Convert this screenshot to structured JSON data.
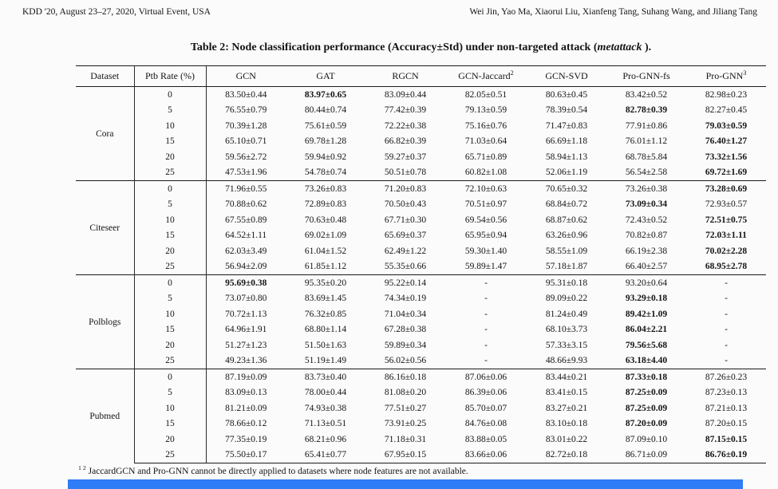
{
  "page_header": {
    "left": "KDD '20, August 23–27, 2020, Virtual Event, USA",
    "right": "Wei Jin, Yao Ma, Xiaorui Liu, Xianfeng Tang, Suhang Wang, and Jiliang Tang"
  },
  "caption": {
    "prefix": "Table 2: Node classification performance (Accuracy±Std) under non-targeted attack (",
    "emph": "metattack",
    "suffix": " )."
  },
  "table": {
    "columns": [
      {
        "label": "Dataset"
      },
      {
        "label": "Ptb Rate (%)"
      },
      {
        "label": "GCN"
      },
      {
        "label": "GAT"
      },
      {
        "label": "RGCN"
      },
      {
        "label": "GCN-Jaccard",
        "sup": "2"
      },
      {
        "label": "GCN-SVD"
      },
      {
        "label": "Pro-GNN-fs"
      },
      {
        "label": "Pro-GNN",
        "sup": "3"
      }
    ],
    "groups": [
      {
        "dataset": "Cora",
        "rows": [
          {
            "ptb": "0",
            "cells": [
              "83.50±0.44",
              "83.97±0.65",
              "83.09±0.44",
              "82.05±0.51",
              "80.63±0.45",
              "83.42±0.52",
              "82.98±0.23"
            ],
            "bold": 1
          },
          {
            "ptb": "5",
            "cells": [
              "76.55±0.79",
              "80.44±0.74",
              "77.42±0.39",
              "79.13±0.59",
              "78.39±0.54",
              "82.78±0.39",
              "82.27±0.45"
            ],
            "bold": 5
          },
          {
            "ptb": "10",
            "cells": [
              "70.39±1.28",
              "75.61±0.59",
              "72.22±0.38",
              "75.16±0.76",
              "71.47±0.83",
              "77.91±0.86",
              "79.03±0.59"
            ],
            "bold": 6
          },
          {
            "ptb": "15",
            "cells": [
              "65.10±0.71",
              "69.78±1.28",
              "66.82±0.39",
              "71.03±0.64",
              "66.69±1.18",
              "76.01±1.12",
              "76.40±1.27"
            ],
            "bold": 6
          },
          {
            "ptb": "20",
            "cells": [
              "59.56±2.72",
              "59.94±0.92",
              "59.27±0.37",
              "65.71±0.89",
              "58.94±1.13",
              "68.78±5.84",
              "73.32±1.56"
            ],
            "bold": 6
          },
          {
            "ptb": "25",
            "cells": [
              "47.53±1.96",
              "54.78±0.74",
              "50.51±0.78",
              "60.82±1.08",
              "52.06±1.19",
              "56.54±2.58",
              "69.72±1.69"
            ],
            "bold": 6
          }
        ]
      },
      {
        "dataset": "Citeseer",
        "rows": [
          {
            "ptb": "0",
            "cells": [
              "71.96±0.55",
              "73.26±0.83",
              "71.20±0.83",
              "72.10±0.63",
              "70.65±0.32",
              "73.26±0.38",
              "73.28±0.69"
            ],
            "bold": 6
          },
          {
            "ptb": "5",
            "cells": [
              "70.88±0.62",
              "72.89±0.83",
              "70.50±0.43",
              "70.51±0.97",
              "68.84±0.72",
              "73.09±0.34",
              "72.93±0.57"
            ],
            "bold": 5
          },
          {
            "ptb": "10",
            "cells": [
              "67.55±0.89",
              "70.63±0.48",
              "67.71±0.30",
              "69.54±0.56",
              "68.87±0.62",
              "72.43±0.52",
              "72.51±0.75"
            ],
            "bold": 6
          },
          {
            "ptb": "15",
            "cells": [
              "64.52±1.11",
              "69.02±1.09",
              "65.69±0.37",
              "65.95±0.94",
              "63.26±0.96",
              "70.82±0.87",
              "72.03±1.11"
            ],
            "bold": 6
          },
          {
            "ptb": "20",
            "cells": [
              "62.03±3.49",
              "61.04±1.52",
              "62.49±1.22",
              "59.30±1.40",
              "58.55±1.09",
              "66.19±2.38",
              "70.02±2.28"
            ],
            "bold": 6
          },
          {
            "ptb": "25",
            "cells": [
              "56.94±2.09",
              "61.85±1.12",
              "55.35±0.66",
              "59.89±1.47",
              "57.18±1.87",
              "66.40±2.57",
              "68.95±2.78"
            ],
            "bold": 6
          }
        ]
      },
      {
        "dataset": "Polblogs",
        "rows": [
          {
            "ptb": "0",
            "cells": [
              "95.69±0.38",
              "95.35±0.20",
              "95.22±0.14",
              "-",
              "95.31±0.18",
              "93.20±0.64",
              "-"
            ],
            "bold": 0
          },
          {
            "ptb": "5",
            "cells": [
              "73.07±0.80",
              "83.69±1.45",
              "74.34±0.19",
              "-",
              "89.09±0.22",
              "93.29±0.18",
              "-"
            ],
            "bold": 5
          },
          {
            "ptb": "10",
            "cells": [
              "70.72±1.13",
              "76.32±0.85",
              "71.04±0.34",
              "-",
              "81.24±0.49",
              "89.42±1.09",
              "-"
            ],
            "bold": 5
          },
          {
            "ptb": "15",
            "cells": [
              "64.96±1.91",
              "68.80±1.14",
              "67.28±0.38",
              "-",
              "68.10±3.73",
              "86.04±2.21",
              "-"
            ],
            "bold": 5
          },
          {
            "ptb": "20",
            "cells": [
              "51.27±1.23",
              "51.50±1.63",
              "59.89±0.34",
              "-",
              "57.33±3.15",
              "79.56±5.68",
              "-"
            ],
            "bold": 5
          },
          {
            "ptb": "25",
            "cells": [
              "49.23±1.36",
              "51.19±1.49",
              "56.02±0.56",
              "-",
              "48.66±9.93",
              "63.18±4.40",
              "-"
            ],
            "bold": 5
          }
        ]
      },
      {
        "dataset": "Pubmed",
        "rows": [
          {
            "ptb": "0",
            "cells": [
              "87.19±0.09",
              "83.73±0.40",
              "86.16±0.18",
              "87.06±0.06",
              "83.44±0.21",
              "87.33±0.18",
              "87.26±0.23"
            ],
            "bold": 5
          },
          {
            "ptb": "5",
            "cells": [
              "83.09±0.13",
              "78.00±0.44",
              "81.08±0.20",
              "86.39±0.06",
              "83.41±0.15",
              "87.25±0.09",
              "87.23±0.13"
            ],
            "bold": 5
          },
          {
            "ptb": "10",
            "cells": [
              "81.21±0.09",
              "74.93±0.38",
              "77.51±0.27",
              "85.70±0.07",
              "83.27±0.21",
              "87.25±0.09",
              "87.21±0.13"
            ],
            "bold": 5
          },
          {
            "ptb": "15",
            "cells": [
              "78.66±0.12",
              "71.13±0.51",
              "73.91±0.25",
              "84.76±0.08",
              "83.10±0.18",
              "87.20±0.09",
              "87.20±0.15"
            ],
            "bold": 5
          },
          {
            "ptb": "20",
            "cells": [
              "77.35±0.19",
              "68.21±0.96",
              "71.18±0.31",
              "83.88±0.05",
              "83.01±0.22",
              "87.09±0.10",
              "87.15±0.15"
            ],
            "bold": 6
          },
          {
            "ptb": "25",
            "cells": [
              "75.50±0.17",
              "65.41±0.77",
              "67.95±0.15",
              "83.66±0.06",
              "82.72±0.18",
              "86.71±0.09",
              "86.76±0.19"
            ],
            "bold": 6
          }
        ]
      }
    ]
  },
  "footnote": {
    "sup": "1 2",
    "text": "JaccardGCN and Pro-GNN cannot be directly applied to datasets where node features are not available."
  },
  "colors": {
    "bottom_bar": "#2e7cf6"
  }
}
